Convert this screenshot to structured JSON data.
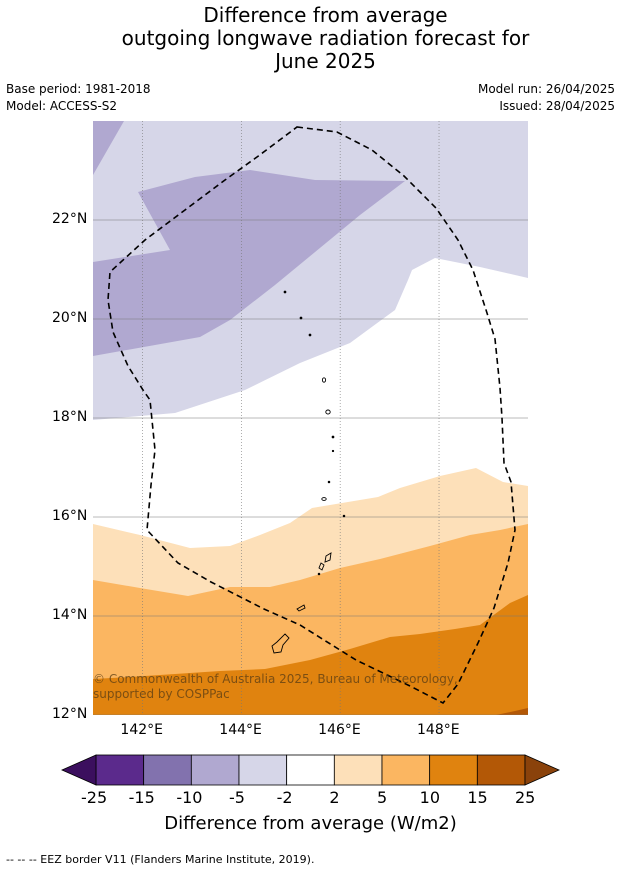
{
  "title": {
    "line1": "Difference from average",
    "line2": "outgoing longwave radiation forecast for",
    "line3": "June 2025"
  },
  "meta": {
    "base_period": "Base period: 1981-2018",
    "model": "Model: ACCESS-S2",
    "model_run": "Model run: 26/04/2025",
    "issued": "Issued: 28/04/2025"
  },
  "map": {
    "lon_range": [
      141,
      149.8
    ],
    "lat_range": [
      12,
      24
    ],
    "lat_ticks": [
      {
        "value": 12,
        "label": "12°N"
      },
      {
        "value": 14,
        "label": "14°N"
      },
      {
        "value": 16,
        "label": "16°N"
      },
      {
        "value": 18,
        "label": "18°N"
      },
      {
        "value": 20,
        "label": "20°N"
      },
      {
        "value": 22,
        "label": "22°N"
      }
    ],
    "lon_ticks": [
      {
        "value": 142,
        "label": "142°E"
      },
      {
        "value": 144,
        "label": "144°E"
      },
      {
        "value": 146,
        "label": "146°E"
      },
      {
        "value": 148,
        "label": "148°E"
      }
    ],
    "copyright": "© Commonwealth of Australia 2025, Bureau of Meteorology, supported by COSPPac"
  },
  "colorbar": {
    "ticks": [
      "-25",
      "-15",
      "-10",
      "-5",
      "-2",
      "2",
      "5",
      "10",
      "15",
      "25"
    ],
    "colors": [
      "#5b2a8c",
      "#8272ae",
      "#b0a8d0",
      "#d6d6e8",
      "#ffffff",
      "#fde0b9",
      "#fbb661",
      "#e0830f",
      "#b35806"
    ],
    "low_extend_color": "#3b0f5e",
    "high_extend_color": "#8a420b",
    "label": "Difference from average (W/m2)"
  },
  "footnote": "--  --  -- EEZ border V11 (Flanders Marine Institute, 2019)."
}
